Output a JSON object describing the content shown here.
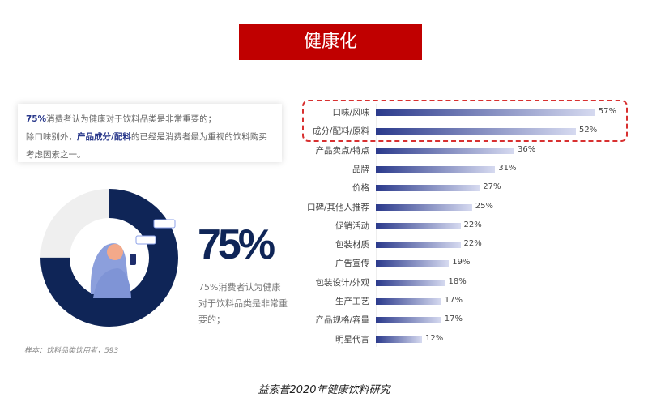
{
  "title": "健康化",
  "note": {
    "pct": "75%",
    "line1": "消费者认为健康对于饮料品类是非常重要的；",
    "line2a": "除口味别外，",
    "line2b": "产品成分/配料",
    "line2c": "的已经是消费者最为重视的饮料购买考虑因素之一。"
  },
  "donut": {
    "value": 75,
    "big": "75%",
    "desc": "75%消费者认为健康对于饮料品类是非常重要的；",
    "colors": {
      "fill": "#0f2557",
      "rest": "#efefef"
    }
  },
  "sample": "样本：饮料品类饮用者，593",
  "footer": "益索普2020年健康饮料研究",
  "chart_data": {
    "type": "bar",
    "orientation": "horizontal",
    "categories": [
      "口味/风味",
      "成分/配料/原料",
      "产品卖点/特点",
      "品牌",
      "价格",
      "口碑/其他人推荐",
      "促销活动",
      "包装材质",
      "广告宣传",
      "包装设计/外观",
      "生产工艺",
      "产品规格/容量",
      "明星代言"
    ],
    "values": [
      57,
      52,
      36,
      31,
      27,
      25,
      22,
      22,
      19,
      18,
      17,
      17,
      12
    ],
    "labels": [
      "57%",
      "52%",
      "36%",
      "31%",
      "27%",
      "25%",
      "22%",
      "22%",
      "19%",
      "18%",
      "17%",
      "17%",
      "12%"
    ],
    "highlighted": [
      "口味/风味",
      "成分/配料/原料"
    ],
    "colors": {
      "bar_start": "#2b3a8c",
      "bar_end": "#d6daf0",
      "highlight": "#d83030"
    }
  }
}
